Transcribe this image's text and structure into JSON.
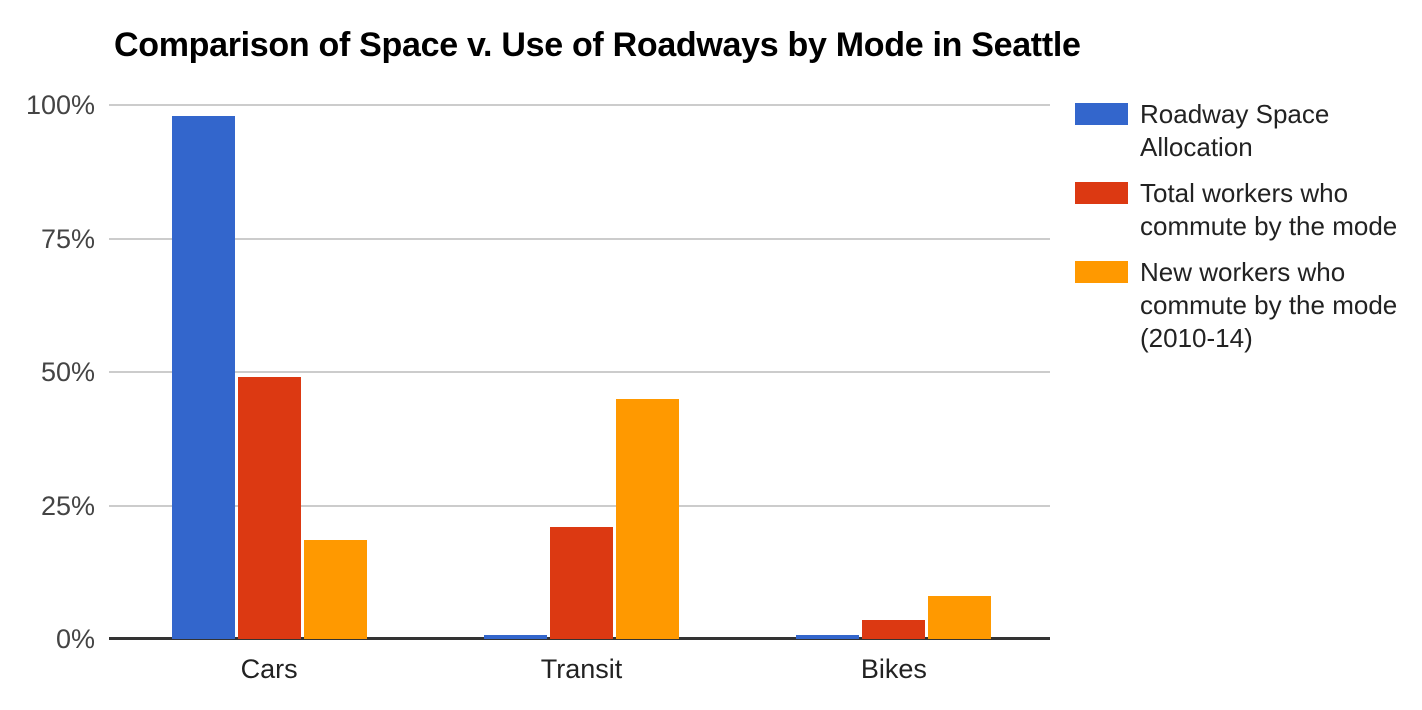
{
  "chart_data": {
    "type": "bar",
    "title": "Comparison of Space v. Use of Roadways by Mode in Seattle",
    "categories": [
      "Cars",
      "Transit",
      "Bikes"
    ],
    "series": [
      {
        "name": "Roadway Space Allocation",
        "legend_lines": [
          "Roadway Space",
          "Allocation"
        ],
        "color": "#3366CC",
        "values": [
          98,
          0.7,
          0.7
        ]
      },
      {
        "name": "Total workers who commute by the mode",
        "legend_lines": [
          "Total workers who",
          "commute by the mode"
        ],
        "color": "#DC3912",
        "values": [
          49,
          21,
          3.5
        ]
      },
      {
        "name": "New workers who commute by the mode (2010-14)",
        "legend_lines": [
          "New workers who",
          "commute by the mode",
          "(2010-14)"
        ],
        "color": "#FF9900",
        "values": [
          18.5,
          45,
          8
        ]
      }
    ],
    "xlabel": "",
    "ylabel": "",
    "y_axis": {
      "range": [
        0,
        100
      ],
      "ticks": [
        {
          "label": "0%",
          "value": 0
        },
        {
          "label": "25%",
          "value": 25
        },
        {
          "label": "50%",
          "value": 50
        },
        {
          "label": "75%",
          "value": 75
        },
        {
          "label": "100%",
          "value": 100
        }
      ]
    },
    "grid": true,
    "legend_position": "right",
    "colors": {
      "background": "#ffffff",
      "title": "#000000",
      "gridline": "#cccccc",
      "baseline": "#333333",
      "axis_tick_label": "#444444",
      "category_label": "#222222",
      "legend_text": "#222222"
    }
  }
}
